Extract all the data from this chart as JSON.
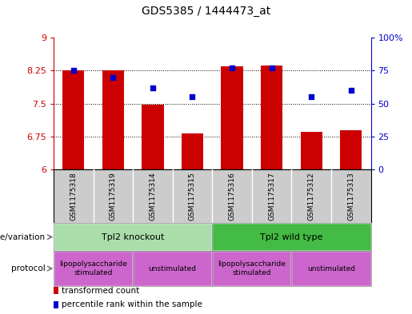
{
  "title": "GDS5385 / 1444473_at",
  "samples": [
    "GSM1175318",
    "GSM1175319",
    "GSM1175314",
    "GSM1175315",
    "GSM1175316",
    "GSM1175317",
    "GSM1175312",
    "GSM1175313"
  ],
  "transformed_count": [
    8.25,
    8.25,
    7.48,
    6.82,
    8.35,
    8.36,
    6.85,
    6.9
  ],
  "percentile_rank": [
    75,
    70,
    62,
    55,
    77,
    77,
    55,
    60
  ],
  "bar_color": "#cc0000",
  "dot_color": "#0000cc",
  "ylim_left": [
    6,
    9
  ],
  "ylim_right": [
    0,
    100
  ],
  "yticks_left": [
    6,
    6.75,
    7.5,
    8.25,
    9
  ],
  "yticks_right": [
    0,
    25,
    50,
    75,
    100
  ],
  "ytick_labels_left": [
    "6",
    "6.75",
    "7.5",
    "8.25",
    "9"
  ],
  "ytick_labels_right": [
    "0",
    "25",
    "50",
    "75",
    "100%"
  ],
  "grid_lines": [
    6.75,
    7.5,
    8.25
  ],
  "genotype_groups": [
    {
      "label": "Tpl2 knockout",
      "start": 0,
      "end": 4,
      "color": "#aaddaa"
    },
    {
      "label": "Tpl2 wild type",
      "start": 4,
      "end": 8,
      "color": "#44bb44"
    }
  ],
  "protocol_groups": [
    {
      "label": "lipopolysaccharide\nstimulated",
      "start": 0,
      "end": 2,
      "color": "#cc66cc"
    },
    {
      "label": "unstimulated",
      "start": 2,
      "end": 4,
      "color": "#cc66cc"
    },
    {
      "label": "lipopolysaccharide\nstimulated",
      "start": 4,
      "end": 6,
      "color": "#cc66cc"
    },
    {
      "label": "unstimulated",
      "start": 6,
      "end": 8,
      "color": "#cc66cc"
    }
  ],
  "genotype_label": "genotype/variation",
  "protocol_label": "protocol",
  "legend_tc": "transformed count",
  "legend_pr": "percentile rank within the sample",
  "bar_bottom": 6,
  "left_axis_color": "#cc0000",
  "right_axis_color": "#0000cc",
  "tick_bg_color": "#cccccc",
  "fig_width": 5.15,
  "fig_height": 3.93,
  "dpi": 100
}
